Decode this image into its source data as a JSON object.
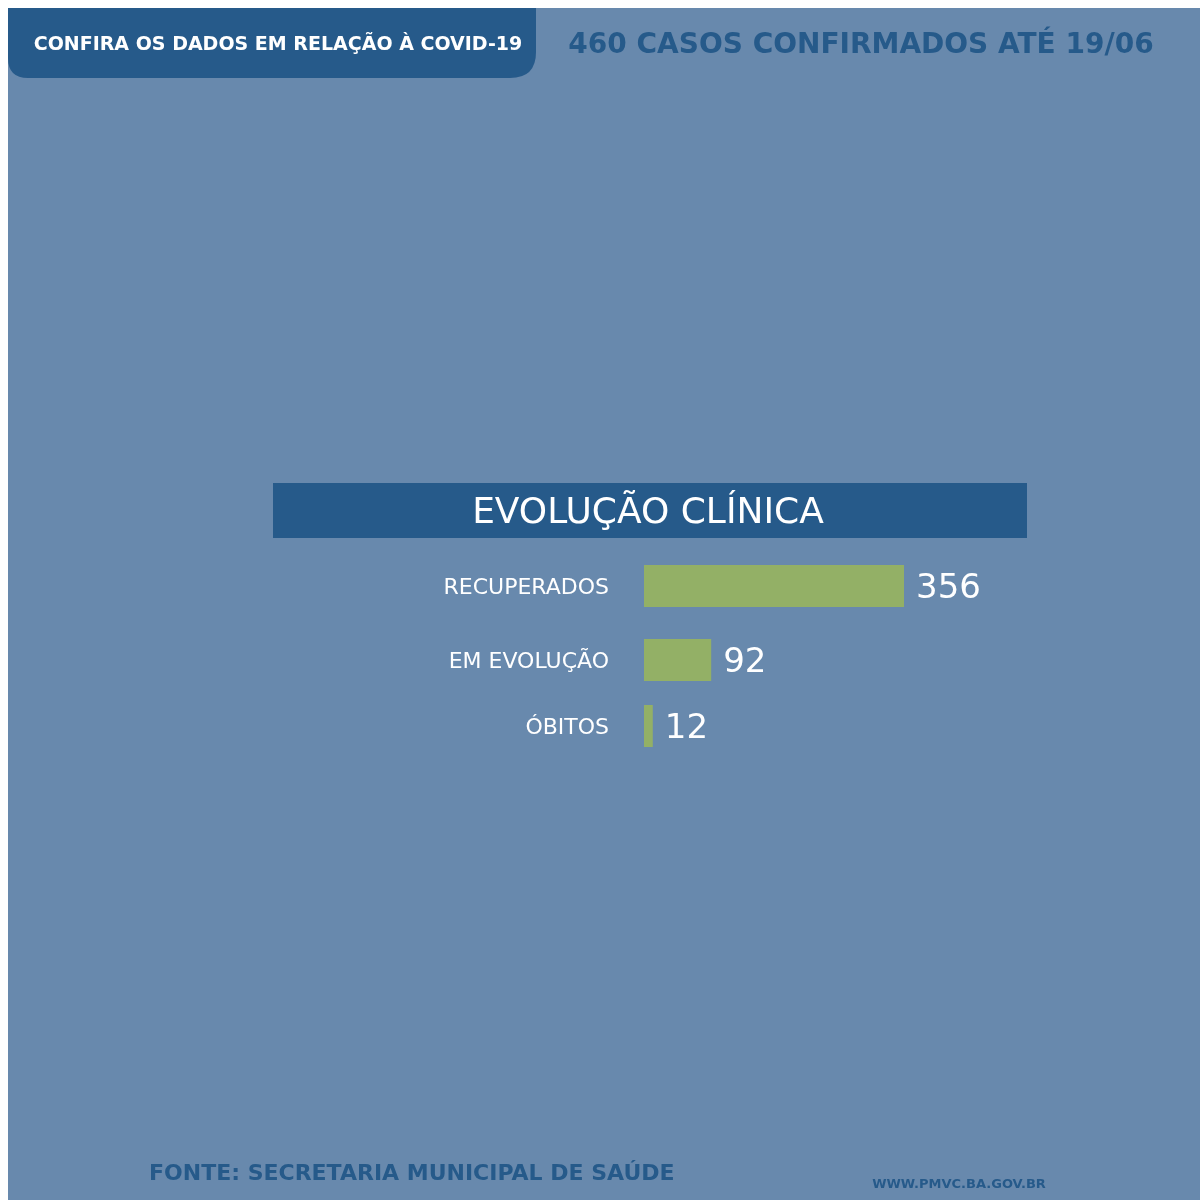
{
  "chart_data": {
    "type": "bar",
    "orientation": "horizontal",
    "title": "EVOLUÇÃO CLÍNICA",
    "subtitle": "460 CASOS CONFIRMADOS ATÉ 19/06",
    "categories": [
      "RECUPERADOS",
      "EM EVOLUÇÃO",
      "ÓBITOS"
    ],
    "values": [
      356,
      92,
      12
    ],
    "color": "#93b066",
    "data_labels": true,
    "annotations": [
      "CONFIRA OS DADOS EM RELAÇÃO À COVID-19",
      "FONTE: SECRETARIA MUNICIPAL DE SAÚDE",
      "WWW.PMVC.BA.GOV.BR"
    ]
  }
}
